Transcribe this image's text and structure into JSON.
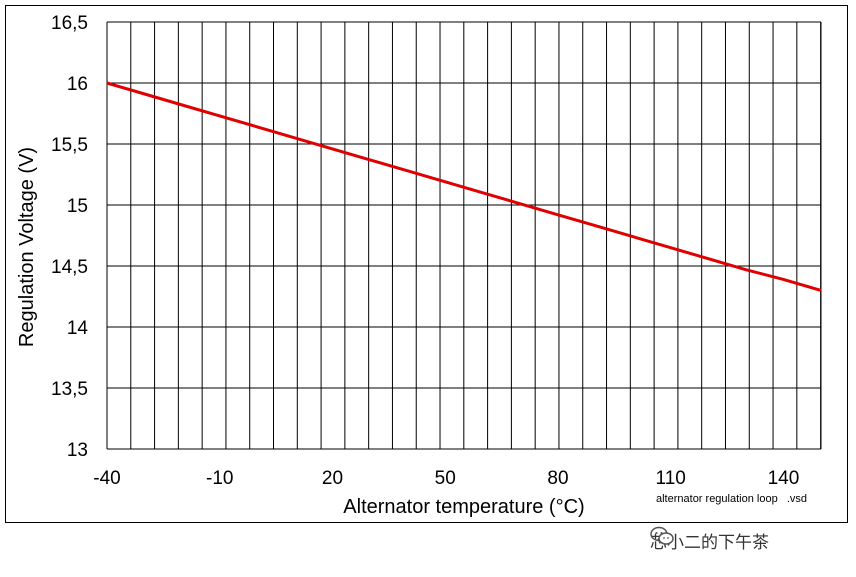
{
  "chart_data": {
    "type": "line",
    "title": "",
    "xlabel": "Alternator temperature (°C)",
    "ylabel": "Regulation Voltage (V)",
    "xlim": [
      -40,
      150
    ],
    "ylim": [
      13,
      16.5
    ],
    "x_ticks": [
      -40,
      -10,
      20,
      50,
      80,
      110,
      140
    ],
    "x_tick_labels": [
      "-40",
      "-10",
      "20",
      "50",
      "80",
      "110",
      "140"
    ],
    "y_ticks": [
      13,
      13.5,
      14,
      14.5,
      15,
      15.5,
      16,
      16.5
    ],
    "y_tick_labels": [
      "13",
      "13,5",
      "14",
      "14,5",
      "15",
      "15,5",
      "16",
      "16,5"
    ],
    "x_grid_step": 6.33,
    "grid": true,
    "series": [
      {
        "color": "#e00000",
        "x": [
          -40,
          -30,
          -20,
          -10,
          0,
          10,
          20,
          30,
          40,
          50,
          60,
          70,
          80,
          90,
          100,
          110,
          120,
          130,
          140,
          150
        ],
        "y": [
          16.0,
          15.91,
          15.82,
          15.73,
          15.64,
          15.55,
          15.46,
          15.37,
          15.28,
          15.19,
          15.1,
          15.01,
          14.92,
          14.83,
          14.74,
          14.65,
          14.56,
          14.47,
          14.39,
          14.3
        ]
      }
    ],
    "annotation": "alternator regulation loop   .vsd"
  },
  "watermark": {
    "text": "芯小二的下午茶",
    "icon": "wechat-icon"
  }
}
